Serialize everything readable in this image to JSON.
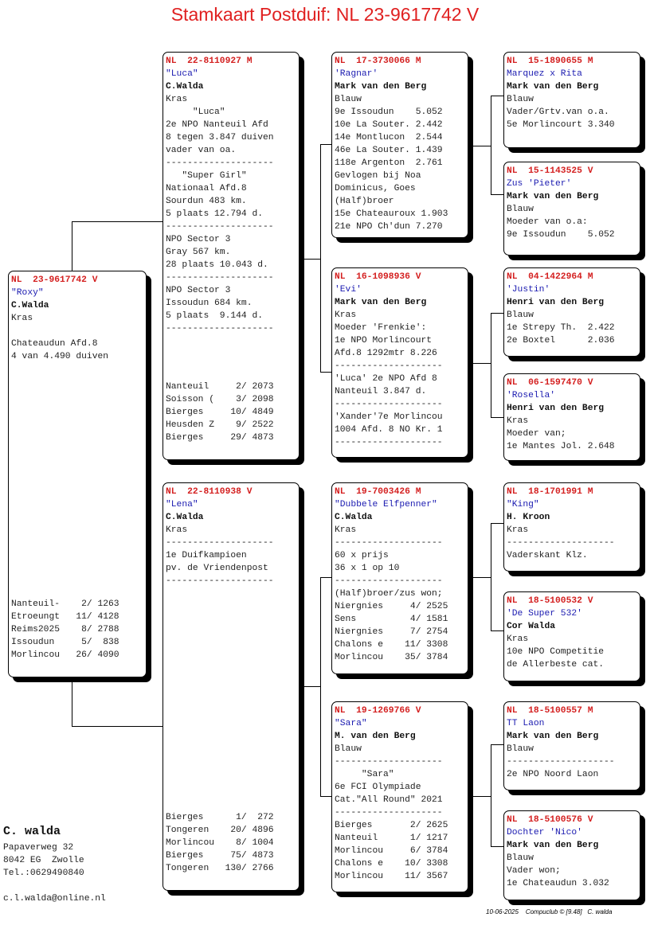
{
  "title": "Stamkaart Postduif: NL  23-9617742 V",
  "pigeons": [
    {
      "id": "subject",
      "ring": "NL  23-9617742 V",
      "name": "\"Roxy\"",
      "owner": "C.Walda",
      "lines": [
        "Kras",
        "",
        "Chateaudun Afd.8",
        "4 van 4.490 duiven"
      ],
      "results": [
        "Nanteuil-    2/ 1263",
        "Etroeungt   11/ 4128",
        "Reims2025    8/ 2788",
        "Issoudun     5/  838",
        "Morlincou   26/ 4090"
      ]
    },
    {
      "id": "sire",
      "ring": "NL  22-8110927 M",
      "name": "\"Luca\"",
      "owner": "C.Walda",
      "lines": [
        "Kras",
        "     \"Luca\"",
        "2e NPO Nanteuil Afd",
        "8 tegen 3.847 duiven",
        "vader van oa.",
        "--------------------",
        "   \"Super Girl\"",
        "Nationaal Afd.8",
        "Sourdun 483 km.",
        "5 plaats 12.794 d.",
        "--------------------",
        "NPO Sector 3",
        "Gray 567 km.",
        "28 plaats 10.043 d.",
        "--------------------",
        "NPO Sector 3",
        "Issoudun 684 km.",
        "5 plaats  9.144 d.",
        "--------------------"
      ],
      "results": [
        "Nanteuil     2/ 2073",
        "Soisson (    3/ 2098",
        "Bierges     10/ 4849",
        "Heusden Z    9/ 2522",
        "Bierges     29/ 4873"
      ]
    },
    {
      "id": "dam",
      "ring": "NL  22-8110938 V",
      "name": "\"Lena\"",
      "owner": "C.Walda",
      "lines": [
        "Kras",
        "--------------------",
        "1e Duifkampioen",
        "pv. de Vriendenpost",
        "--------------------"
      ],
      "results": [
        "Bierges      1/  272",
        "Tongeren    20/ 4896",
        "Morlincou    8/ 1004",
        "Bierges     75/ 4873",
        "Tongeren   130/ 2766"
      ]
    },
    {
      "id": "sire-sire",
      "ring": "NL  17-3730066 M",
      "name": "'Ragnar'",
      "owner": "Mark van den Berg",
      "lines": [
        "Blauw",
        "9e Issoudun    5.052",
        "10e La Souter. 2.442",
        "14e Montlucon  2.544",
        "46e La Souter. 1.439",
        "118e Argenton  2.761",
        "Gevlogen bij Noa",
        "Dominicus, Goes",
        "(Half)broer",
        "15e Chateauroux 1.903",
        "21e NPO Ch'dun 7.270"
      ],
      "results": []
    },
    {
      "id": "sire-dam",
      "ring": "NL  16-1098936 V",
      "name": "'Evi'",
      "owner": "Mark van den Berg",
      "lines": [
        "Kras",
        "Moeder 'Frenkie':",
        "1e NPO Morlincourt",
        "Afd.8 1292mtr 8.226",
        "--------------------",
        "'Luca' 2e NPO Afd 8",
        "Nanteuil 3.847 d.",
        "--------------------",
        "'Xander'7e Morlincou",
        "1004 Afd. 8 NO Kr. 1",
        "--------------------"
      ],
      "results": []
    },
    {
      "id": "dam-sire",
      "ring": "NL  19-7003426 M",
      "name": "\"Dubbele Elfpenner\"",
      "owner": "C.Walda",
      "lines": [
        "Kras",
        "--------------------",
        "60 x prijs",
        "36 x 1 op 10",
        "--------------------",
        "(Half)broer/zus won;",
        "Niergnies     4/ 2525",
        "Sens          4/ 1581",
        "Niergnies     7/ 2754",
        "Chalons e    11/ 3308",
        "Morlincou    35/ 3784"
      ],
      "results": []
    },
    {
      "id": "dam-dam",
      "ring": "NL  19-1269766 V",
      "name": "\"Sara\"",
      "owner": "M. van den Berg",
      "lines": [
        "Blauw",
        "--------------------",
        "     \"Sara\"",
        "6e FCI Olympiade",
        "Cat.\"All Round\" 2021",
        "--------------------",
        "Bierges       2/ 2625",
        "Nanteuil      1/ 1217",
        "Morlincou     6/ 3784",
        "Chalons e    10/ 3308",
        "Morlincou    11/ 3567"
      ],
      "results": []
    },
    {
      "id": "ggp-1",
      "ring": "NL  15-1890655 M",
      "name": "Marquez x Rita",
      "owner": "Mark van den Berg",
      "lines": [
        "Blauw",
        "Vader/Grtv.van o.a.",
        "5e Morlincourt 3.340"
      ],
      "results": []
    },
    {
      "id": "ggp-2",
      "ring": "NL  15-1143525 V",
      "name": "Zus 'Pieter'",
      "owner": "Mark van den Berg",
      "lines": [
        "Blauw",
        "Moeder van o.a:",
        "9e Issoudun    5.052"
      ],
      "results": []
    },
    {
      "id": "ggp-3",
      "ring": "NL  04-1422964 M",
      "name": "'Justin'",
      "owner": "Henri van den Berg",
      "lines": [
        "Blauw",
        "1e Strepy Th.  2.422",
        "2e Boxtel      2.036"
      ],
      "results": []
    },
    {
      "id": "ggp-4",
      "ring": "NL  06-1597470 V",
      "name": "'Rosella'",
      "owner": "Henri van den Berg",
      "lines": [
        "Kras",
        "Moeder van;",
        "1e Mantes Jol. 2.648"
      ],
      "results": []
    },
    {
      "id": "ggp-5",
      "ring": "NL  18-1701991 M",
      "name": "\"King\"",
      "owner": "H. Kroon",
      "lines": [
        "Kras",
        "--------------------",
        "Vaderskant Klz."
      ],
      "results": []
    },
    {
      "id": "ggp-6",
      "ring": "NL  18-5100532 V",
      "name": "'De Super 532'",
      "owner": "Cor Walda",
      "lines": [
        "Kras",
        "10e NPO Competitie",
        "de Allerbeste cat."
      ],
      "results": []
    },
    {
      "id": "ggp-7",
      "ring": "NL  18-5100557 M",
      "name": "TT Laon",
      "owner": "Mark van den Berg",
      "lines": [
        "Blauw",
        "--------------------",
        "2e NPO Noord Laon"
      ],
      "results": []
    },
    {
      "id": "ggp-8",
      "ring": "NL  18-5100576 V",
      "name": "Dochter 'Nico'",
      "owner": "Mark van den Berg",
      "lines": [
        "Blauw",
        "Vader won;",
        "1e Chateaudun 3.032"
      ],
      "results": []
    }
  ],
  "breeder": {
    "name": "C. walda",
    "address": "Papaverweg 32",
    "city": "8042 EG  Zwolle",
    "phone": "Tel.:0629490840",
    "email": "c.l.walda@online.nl"
  },
  "footer": {
    "date": "10-06-2025",
    "software": "Compuclub © [9.48]",
    "user": "C. walda"
  },
  "colors": {
    "ring": "#d42020",
    "name": "#1a1ab0",
    "title": "#e02020"
  }
}
